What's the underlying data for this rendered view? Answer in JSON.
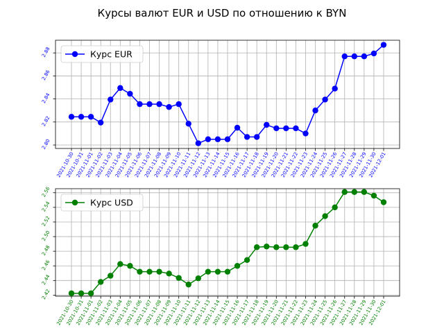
{
  "title": "Курсы валют EUR и USD по отношению к BYN",
  "chart_data": [
    {
      "type": "line",
      "title": "",
      "xlabel": "",
      "ylabel": "",
      "color": "#0000ff",
      "grid": true,
      "legend_position": "top-left",
      "ylim": [
        2.797,
        2.891
      ],
      "yticks": [
        2.8,
        2.82,
        2.84,
        2.86,
        2.88
      ],
      "categories": [
        "2021-10-30",
        "2021-10-31",
        "2021-11-01",
        "2021-11-02",
        "2021-11-03",
        "2021-11-04",
        "2021-11-05",
        "2021-11-06",
        "2021-11-07",
        "2021-11-08",
        "2021-11-09",
        "2021-11-10",
        "2021-11-11",
        "2021-11-12",
        "2021-11-13",
        "2021-11-14",
        "2021-11-15",
        "2021-11-16",
        "2021-11-17",
        "2021-11-18",
        "2021-11-19",
        "2021-11-20",
        "2021-11-21",
        "2021-11-22",
        "2021-11-23",
        "2021-11-24",
        "2021-11-25",
        "2021-11-26",
        "2021-11-27",
        "2021-11-28",
        "2021-11-29",
        "2021-11-30",
        "2021-12-01"
      ],
      "series": [
        {
          "name": "Курс EUR",
          "values": [
            2.8245,
            2.8245,
            2.8245,
            2.8195,
            2.8395,
            2.8495,
            2.8445,
            2.8355,
            2.8355,
            2.8355,
            2.833,
            2.8355,
            2.8185,
            2.8015,
            2.805,
            2.805,
            2.805,
            2.815,
            2.807,
            2.807,
            2.8175,
            2.8145,
            2.8145,
            2.8145,
            2.81,
            2.83,
            2.8395,
            2.849,
            2.877,
            2.877,
            2.877,
            2.8795,
            2.887
          ]
        }
      ]
    },
    {
      "type": "line",
      "title": "",
      "xlabel": "",
      "ylabel": "",
      "color": "#008000",
      "grid": true,
      "legend_position": "top-left",
      "ylim": [
        2.4185,
        2.5655
      ],
      "yticks": [
        2.42,
        2.44,
        2.46,
        2.48,
        2.5,
        2.52,
        2.54,
        2.56
      ],
      "categories": [
        "2021-10-30",
        "2021-10-31",
        "2021-11-01",
        "2021-11-02",
        "2021-11-03",
        "2021-11-04",
        "2021-11-05",
        "2021-11-06",
        "2021-11-07",
        "2021-11-08",
        "2021-11-09",
        "2021-11-10",
        "2021-11-11",
        "2021-11-12",
        "2021-11-13",
        "2021-11-14",
        "2021-11-15",
        "2021-11-16",
        "2021-11-17",
        "2021-11-18",
        "2021-11-19",
        "2021-11-20",
        "2021-11-21",
        "2021-11-22",
        "2021-11-23",
        "2021-11-24",
        "2021-11-25",
        "2021-11-26",
        "2021-11-27",
        "2021-11-28",
        "2021-11-29",
        "2021-11-30",
        "2021-12-01"
      ],
      "series": [
        {
          "name": "Курс USD",
          "values": [
            2.4225,
            2.4225,
            2.4225,
            2.438,
            2.4465,
            2.4625,
            2.46,
            2.452,
            2.452,
            2.452,
            2.4495,
            2.4435,
            2.4345,
            2.443,
            2.452,
            2.452,
            2.452,
            2.46,
            2.468,
            2.4855,
            2.4865,
            2.4855,
            2.4855,
            2.4855,
            2.49,
            2.515,
            2.528,
            2.54,
            2.561,
            2.561,
            2.561,
            2.556,
            2.547
          ]
        }
      ]
    }
  ]
}
